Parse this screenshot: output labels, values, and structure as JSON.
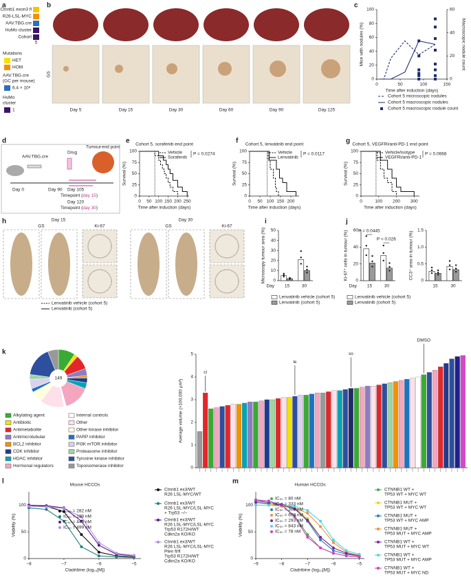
{
  "panels": {
    "labels": [
      "a",
      "b",
      "c",
      "d",
      "e",
      "f",
      "g",
      "h",
      "i",
      "j",
      "k",
      "l",
      "m"
    ],
    "a": {
      "rows": [
        "Ctnnb1 exon3 fl",
        "R26-LSL-MYC",
        "AAV.TBG.cre",
        "HuMo cluster",
        "Cohort"
      ],
      "cohort": "5",
      "mutations_title": "Mutations",
      "het": "HET",
      "hom": "HOM",
      "dose_title": [
        "AAV.TBG.cre",
        "(GC per mouse)"
      ],
      "dose": "6.4 × 10⁸",
      "cluster_title": [
        "HuMo",
        "cluster"
      ],
      "cluster": "1"
    },
    "b": {
      "days": [
        "Day 5",
        "Day 15",
        "Day 30",
        "Day 60",
        "Day 90",
        "Day 125"
      ],
      "stain": "GS"
    },
    "d": {
      "virus": "AAV.TBG.cre",
      "drug": "Drug",
      "endpoint": [
        "Tumour",
        "end point"
      ],
      "day0": "Day 0",
      "day90": "Day 90",
      "day105": "Day 105",
      "tp15": [
        "Timepoint (",
        "day 15",
        ")"
      ],
      "day120": "Day 120",
      "tp30": [
        "Timepoint (",
        "day 30",
        ")"
      ]
    },
    "h": {
      "days": [
        "Day 15",
        "Day 30"
      ],
      "stains": [
        "GS",
        "Ki-67"
      ],
      "legend": [
        "Lenvatinib vehicle (cohort 5)",
        "Lenvatinib (cohort 5)"
      ]
    }
  },
  "chart_data": [
    {
      "type": "line",
      "xlabel": "Time after induction (days)",
      "ylabel": "Mice with nodules (%)",
      "y2label": "Macroscopic nodule count",
      "xlim": [
        0,
        150
      ],
      "xticks": [
        0,
        50,
        100,
        150
      ],
      "ylim": [
        0,
        100
      ],
      "yticks": [
        0,
        20,
        40,
        60,
        80,
        100
      ],
      "y2lim": [
        0,
        60
      ],
      "y2ticks": [
        0,
        20,
        40,
        60
      ],
      "series": [
        {
          "name": "Cohort 5 microscopic nodules",
          "color": "#1f2a6b",
          "style": "dashed",
          "x": [
            5,
            15,
            30,
            60,
            90,
            125
          ],
          "values": [
            0,
            0,
            30,
            55,
            35,
            50
          ]
        },
        {
          "name": "Cohort 5 macroscopic nodules",
          "color": "#1f2a6b",
          "style": "solid",
          "x": [
            5,
            15,
            30,
            60,
            90,
            125
          ],
          "values": [
            0,
            0,
            0,
            10,
            55,
            50
          ]
        },
        {
          "name": "Cohort 5 macroscopic nodule count",
          "color": "#1f2a6b",
          "style": "points",
          "axis": "y2",
          "x": [
            90,
            90,
            90,
            90,
            90,
            90,
            125,
            125,
            125,
            125,
            125,
            125,
            125,
            125
          ],
          "values": [
            0,
            3,
            5,
            8,
            20,
            33,
            0,
            3,
            8,
            13,
            25,
            35,
            45,
            52
          ]
        }
      ]
    },
    {
      "type": "step",
      "title": "Cohort 5, sorafenib end point",
      "annotation": "P = 0.0274",
      "xlabel": "Time after induction (days)",
      "ylabel": "Survival (%)",
      "xlim": [
        0,
        260
      ],
      "xticks": [
        0,
        50,
        100,
        150,
        200,
        250
      ],
      "ylim": [
        0,
        100
      ],
      "yticks": [
        0,
        25,
        50,
        75,
        100
      ],
      "vline": 80,
      "series": [
        {
          "name": "Vehicle",
          "color": "#111",
          "style": "dashed",
          "x": [
            0,
            80,
            100,
            110,
            120,
            130,
            140,
            150,
            160,
            175,
            200
          ],
          "values": [
            100,
            90,
            80,
            70,
            60,
            50,
            40,
            30,
            20,
            10,
            0
          ]
        },
        {
          "name": "Sorafenib",
          "color": "#111",
          "style": "solid",
          "x": [
            0,
            100,
            125,
            140,
            150,
            160,
            175,
            200,
            225,
            250
          ],
          "values": [
            100,
            90,
            80,
            70,
            60,
            50,
            35,
            20,
            10,
            0
          ]
        }
      ]
    },
    {
      "type": "step",
      "title": "Cohort 5, lenvatinib end point",
      "annotation": "P = 0.0117",
      "xlabel": "Time after induction (days)",
      "ylabel": "Survival (%)",
      "xlim": [
        0,
        240
      ],
      "xticks": [
        0,
        50,
        100,
        150,
        200
      ],
      "ylim": [
        0,
        100
      ],
      "yticks": [
        0,
        25,
        50,
        75,
        100
      ],
      "vline": 85,
      "series": [
        {
          "name": "Vehicle",
          "color": "#111",
          "style": "dashed",
          "x": [
            0,
            90,
            100,
            115,
            125,
            130,
            140
          ],
          "values": [
            100,
            80,
            60,
            40,
            20,
            10,
            0
          ]
        },
        {
          "name": "Lenvatinib",
          "color": "#111",
          "style": "solid",
          "x": [
            0,
            95,
            130,
            145,
            160,
            180,
            225
          ],
          "values": [
            100,
            80,
            60,
            40,
            30,
            10,
            0
          ]
        }
      ]
    },
    {
      "type": "step",
      "title": "Cohort 5, VEGFRi/anti-PD-1 end point",
      "annotation": "P = 0.0668",
      "xlabel": "Time after induction (days)",
      "ylabel": "Survival (%)",
      "xlim": [
        0,
        330
      ],
      "xticks": [
        0,
        100,
        200,
        300
      ],
      "ylim": [
        0,
        100
      ],
      "yticks": [
        0,
        25,
        50,
        75,
        100
      ],
      "vline": 85,
      "series": [
        {
          "name": "Vehicle/isotype",
          "color": "#111",
          "style": "dashed",
          "x": [
            0,
            90,
            110,
            130,
            150,
            175,
            200
          ],
          "values": [
            100,
            80,
            60,
            40,
            30,
            10,
            0
          ]
        },
        {
          "name": "VEGFRi/anti-PD-1",
          "color": "#111",
          "style": "solid",
          "x": [
            0,
            110,
            150,
            175,
            200,
            225,
            300
          ],
          "values": [
            100,
            80,
            60,
            40,
            20,
            10,
            0
          ]
        }
      ]
    },
    {
      "type": "bar",
      "xlabel": "Day",
      "ylabel": "Microscopy tumour area (%)",
      "categories": [
        "15",
        "30"
      ],
      "ylim": [
        0,
        50
      ],
      "yticks": [
        0,
        10,
        20,
        30,
        40,
        50
      ],
      "series": [
        {
          "name": "Lenvatinib vehicle (cohort 5)",
          "color": "#ffffff",
          "values": [
            5,
            21
          ]
        },
        {
          "name": "Lenvatinib (cohort 5)",
          "color": "#9a9a9a",
          "values": [
            2,
            10
          ]
        }
      ]
    },
    {
      "type": "bar",
      "xlabel": "Day",
      "ylabel": "Ki-67⁺ cells in tumour (%)",
      "categories": [
        "15",
        "30"
      ],
      "ylim": [
        0,
        60
      ],
      "yticks": [
        0,
        20,
        40,
        60
      ],
      "annotations": [
        "P = 0.0445",
        "P = 0.026"
      ],
      "series": [
        {
          "name": "Lenvatinib vehicle (cohort 5)",
          "color": "#ffffff",
          "values": [
            38,
            30
          ]
        },
        {
          "name": "Lenvatinib (cohort 5)",
          "color": "#9a9a9a",
          "values": [
            21,
            15
          ]
        }
      ]
    },
    {
      "type": "bar",
      "ylabel": "CC3⁺ area in tumour (%)",
      "categories": [
        "15",
        "30"
      ],
      "ylim": [
        0,
        1.5
      ],
      "yticks": [
        0,
        0.5,
        {
          "value": 1,
          "label": "1.0"
        },
        1.5
      ],
      "series": [
        {
          "color": "#ffffff",
          "values": [
            0.28,
            0.42
          ]
        },
        {
          "color": "#9a9a9a",
          "values": [
            0.22,
            0.33
          ]
        }
      ]
    },
    {
      "type": "pie",
      "total": 149,
      "categories": [
        "Alkylating agent",
        "Antibiotic",
        "Antimetabolite",
        "Antimicrotubular",
        "BCL2 inhibitor",
        "CDK inhibitor",
        "HDAC inhibitor",
        "Hormonal regulators",
        "Internal controls",
        "Other",
        "Other kinase inhibitor",
        "PARP inhibitor",
        "PI3K mTOR inhibitor",
        "Proteasome inhibitor",
        "Tyrosine kinase inhibitor",
        "Topoisomerase inhibitor"
      ],
      "values": [
        14,
        3,
        12,
        6,
        2,
        4,
        5,
        22,
        2,
        20,
        10,
        3,
        8,
        4,
        25,
        9
      ],
      "colors": [
        "#3aaa35",
        "#f5e100",
        "#e3262a",
        "#8e7cc3",
        "#f39200",
        "#1f3b8f",
        "#00a5b5",
        "#f4a6c0",
        "#ffffff",
        "#fde0ea",
        "#ffffe0",
        "#1e73be",
        "#dcd0ef",
        "#9fd5a3",
        "#2e4f9e",
        "#999999"
      ]
    },
    {
      "type": "colorbar",
      "ylabel": "Average volume (×100,000 µm³)",
      "ylim": [
        0,
        5
      ],
      "yticks": [
        0,
        1,
        2,
        3,
        4,
        5
      ],
      "annotations": [
        "cl",
        "le",
        "so",
        "DMSO"
      ],
      "values": [
        1.6,
        3.3,
        2.6,
        2.65,
        2.7,
        2.75,
        2.8,
        2.8,
        2.85,
        2.9,
        2.9,
        2.95,
        3.0,
        3.0,
        3.05,
        3.1,
        3.1,
        3.15,
        3.2,
        3.2,
        3.25,
        3.3,
        3.3,
        3.35,
        3.4,
        3.4,
        3.45,
        3.5,
        3.5,
        3.55,
        3.6,
        3.6,
        3.65,
        3.7,
        3.75,
        3.8,
        3.85,
        3.9,
        3.95,
        4.0,
        4.1,
        4.2,
        4.3,
        4.45,
        4.6,
        4.8,
        4.9,
        4.95
      ],
      "colors": [
        "#999999",
        "#e3262a",
        "#3aaa35",
        "#f4a6c0",
        "#2e4f9e",
        "#e3262a",
        "#fde0ea",
        "#f39200",
        "#00a5b5",
        "#8e7cc3",
        "#3aaa35",
        "#f4a6c0",
        "#1f3b8f",
        "#9fd5a3",
        "#e3262a",
        "#fde0ea",
        "#f5e100",
        "#2e4f9e",
        "#dcd0ef",
        "#3aaa35",
        "#1e73be",
        "#f4a6c0",
        "#999999",
        "#e3262a",
        "#fde0ea",
        "#00a5b5",
        "#2e4f9e",
        "#1f2a6b",
        "#3aaa35",
        "#f4a6c0",
        "#8e7cc3",
        "#fde0ea",
        "#e3262a",
        "#2e4f9e",
        "#9fd5a3",
        "#f39200",
        "#f4a6c0",
        "#1e73be",
        "#fde0ea",
        "#ffffff",
        "#3aaa35",
        "#2e4f9e",
        "#f4a6c0",
        "#e3262a",
        "#1f3b8f",
        "#2e4f9e",
        "#1f1f8f",
        "#d646c8"
      ]
    },
    {
      "type": "line",
      "title": "Mouse HCCOs",
      "xlabel": "Cladribine (log₁₀[M])",
      "ylabel": "Viability (%)",
      "xlim": [
        -8,
        -4.8
      ],
      "xticks": [
        {
          "value": -8,
          "label": "−8"
        },
        {
          "value": -7,
          "label": "−7"
        },
        {
          "value": -6,
          "label": "−6"
        },
        {
          "value": -5,
          "label": "−5"
        }
      ],
      "ylim": [
        0,
        125
      ],
      "yticks": [
        0,
        50,
        100
      ],
      "markers": true,
      "x": [
        -8,
        -7.5,
        -7,
        -6.5,
        -6,
        -5.5,
        -5
      ],
      "annotations": [
        "IC₅₀ = 282 nM",
        "IC₅₀ = 180 nM",
        "IC₅₀ = 440 nM",
        "IC₅₀ = 499 nM"
      ],
      "series": [
        {
          "name": [
            "Ctnnb1 ex3/WT",
            "R26 LSL-MYC/WT"
          ],
          "color": "#111111",
          "values": [
            100,
            98,
            88,
            45,
            12,
            5,
            3
          ]
        },
        {
          "name": [
            "Ctnnb1 ex3/WT",
            "R26 LSL-MYC/LSL-MYC",
            "+ Trp53 −/−"
          ],
          "color": "#1f7f7a",
          "values": [
            95,
            92,
            70,
            22,
            5,
            3,
            2
          ]
        },
        {
          "name": [
            "Ctnnb1 ex3/WT",
            "R26 LSL-MYC/LSL-MYC",
            "Trp53 R172H/WT",
            "Cdkn2a KO/KO"
          ],
          "color": "#5b1a8a",
          "values": [
            100,
            99,
            95,
            70,
            25,
            8,
            5
          ]
        },
        {
          "name": [
            "Ctnnb1 ex3/WT",
            "R26 LSL-MYC/LSL-MYC",
            "Pten fl/fl",
            "Trp53 R172H/WT",
            "Cdkn2a KO/KO"
          ],
          "color": "#b58ae6",
          "values": [
            98,
            97,
            94,
            78,
            30,
            10,
            6
          ]
        }
      ]
    },
    {
      "type": "line",
      "title": "Human HCCOs",
      "xlabel": "Cladribine (log₁₀[M])",
      "ylabel": "Viability (%)",
      "xlim": [
        -9,
        -4.8
      ],
      "xticks": [
        {
          "value": -9,
          "label": "−9"
        },
        {
          "value": -8,
          "label": "−8"
        },
        {
          "value": -7,
          "label": "−7"
        },
        {
          "value": -6,
          "label": "−6"
        },
        {
          "value": -5,
          "label": "−5"
        }
      ],
      "ylim": [
        0,
        125
      ],
      "yticks": [
        0,
        50,
        100
      ],
      "markers": true,
      "x": [
        -9,
        -8.5,
        -8,
        -7.5,
        -7,
        -6.5,
        -6,
        -5.5,
        -5
      ],
      "annotations": [
        "IC₅₀ = 80 nM",
        "IC₅₀ = 333 nM",
        "IC₅₀ = 308 nM",
        "IC₅₀ = 608 nM",
        "IC₅₀ = 293 nM",
        "IC₅₀ = 843 nM",
        "IC₅₀ = 78 nM"
      ],
      "series": [
        {
          "name": [
            "CTNNB1 WT +",
            "TP53 WT + MYC WT"
          ],
          "color": "#4aa84a",
          "values": [
            110,
            105,
            100,
            80,
            45,
            20,
            10,
            5,
            3
          ]
        },
        {
          "name": [
            "CTNNB1 MUT +",
            "TP53 WT + MYC WT"
          ],
          "color": "#e6d22a",
          "values": [
            105,
            103,
            100,
            95,
            75,
            40,
            20,
            10,
            5
          ]
        },
        {
          "name": [
            "CTNNB1 MUT +",
            "TP53 WT + MYC AMP"
          ],
          "color": "#2a7fc0",
          "values": [
            108,
            105,
            102,
            95,
            70,
            35,
            15,
            8,
            5
          ]
        },
        {
          "name": [
            "CTNNB1 MUT +",
            "TP53 MUT + MYC AMP"
          ],
          "color": "#f0913a",
          "values": [
            100,
            100,
            98,
            95,
            85,
            60,
            30,
            12,
            6
          ]
        },
        {
          "name": [
            "CTNNB1 WT +",
            "TP53 MUT + MYC WT"
          ],
          "color": "#7a2a9a",
          "values": [
            105,
            103,
            100,
            93,
            72,
            40,
            20,
            10,
            5
          ]
        },
        {
          "name": [
            "CTNNB1 WT +",
            "TP53 MUT + MYC AMP"
          ],
          "color": "#4fd6e6",
          "values": [
            100,
            100,
            100,
            98,
            90,
            70,
            35,
            15,
            8
          ]
        },
        {
          "name": [
            "CTNNB1 WT +",
            "TP53 MUT + MYC ND"
          ],
          "color": "#d43ec8",
          "values": [
            110,
            108,
            100,
            78,
            40,
            20,
            10,
            5,
            3
          ]
        }
      ]
    }
  ]
}
